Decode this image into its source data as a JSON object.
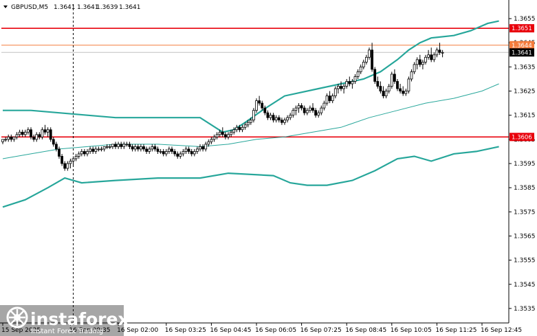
{
  "chart_data": {
    "type": "candlestick",
    "symbol_header": "GBPUSD,M5",
    "ohlc_header": [
      "1.3641",
      "1.3641",
      "1.3639",
      "1.3641"
    ],
    "ylim": [
      1.3529,
      1.3661
    ],
    "y_ticks": [
      "1.3655",
      "1.3645",
      "1.3635",
      "1.3625",
      "1.3615",
      "1.3605",
      "1.3595",
      "1.3585",
      "1.3575",
      "1.3565",
      "1.3555",
      "1.3545",
      "1.3535"
    ],
    "x_tick_labels": [
      "15 Sep 2025",
      "16 Sep 00:35",
      "16 Sep 02:00",
      "16 Sep 03:25",
      "16 Sep 04:45",
      "16 Sep 06:05",
      "16 Sep 07:25",
      "16 Sep 08:45",
      "16 Sep 10:05",
      "16 Sep 11:25",
      "16 Sep 12:45"
    ],
    "x_tick_index": [
      0,
      24,
      41,
      58,
      74,
      90,
      106,
      122,
      138,
      154,
      170
    ],
    "levels": [
      {
        "label": "1.3651",
        "value": 1.3651,
        "color": "#e8000b"
      },
      {
        "label": "1.3644",
        "value": 1.3644,
        "color": "#f47c3c"
      },
      {
        "label": "1.3641",
        "value": 1.3641,
        "color": "#c0c0c0"
      },
      {
        "label": "1.3606",
        "value": 1.3606,
        "color": "#e8000b"
      }
    ],
    "current_price_label": "1.3641",
    "crosshair_index": 25,
    "bands": {
      "upper": [
        [
          0,
          1.3617
        ],
        [
          10,
          1.3617
        ],
        [
          20,
          1.3616
        ],
        [
          30,
          1.3615
        ],
        [
          40,
          1.3614
        ],
        [
          55,
          1.3614
        ],
        [
          70,
          1.3614
        ],
        [
          78,
          1.3608
        ],
        [
          82,
          1.3609
        ],
        [
          86,
          1.3612
        ],
        [
          92,
          1.3617
        ],
        [
          100,
          1.3623
        ],
        [
          112,
          1.3626
        ],
        [
          120,
          1.3628
        ],
        [
          128,
          1.363
        ],
        [
          134,
          1.3633
        ],
        [
          140,
          1.3638
        ],
        [
          144,
          1.3642
        ],
        [
          148,
          1.3645
        ],
        [
          152,
          1.3647
        ],
        [
          160,
          1.3648
        ],
        [
          166,
          1.365
        ],
        [
          172,
          1.3653
        ],
        [
          176,
          1.3654
        ]
      ],
      "middle": [
        [
          0,
          1.3597
        ],
        [
          10,
          1.3599
        ],
        [
          20,
          1.3601
        ],
        [
          30,
          1.3602
        ],
        [
          40,
          1.3603
        ],
        [
          55,
          1.3603
        ],
        [
          70,
          1.3602
        ],
        [
          80,
          1.3603
        ],
        [
          90,
          1.3605
        ],
        [
          100,
          1.3606
        ],
        [
          110,
          1.3608
        ],
        [
          120,
          1.361
        ],
        [
          130,
          1.3614
        ],
        [
          140,
          1.3617
        ],
        [
          150,
          1.362
        ],
        [
          160,
          1.3622
        ],
        [
          170,
          1.3625
        ],
        [
          176,
          1.3628
        ]
      ],
      "lower": [
        [
          0,
          1.3577
        ],
        [
          8,
          1.358
        ],
        [
          16,
          1.3585
        ],
        [
          22,
          1.3589
        ],
        [
          28,
          1.3587
        ],
        [
          40,
          1.3588
        ],
        [
          55,
          1.3589
        ],
        [
          70,
          1.3589
        ],
        [
          80,
          1.3591
        ],
        [
          96,
          1.359
        ],
        [
          102,
          1.3587
        ],
        [
          108,
          1.3586
        ],
        [
          115,
          1.3586
        ],
        [
          124,
          1.3588
        ],
        [
          132,
          1.3592
        ],
        [
          140,
          1.3597
        ],
        [
          146,
          1.3598
        ],
        [
          152,
          1.3596
        ],
        [
          160,
          1.3599
        ],
        [
          168,
          1.36
        ],
        [
          176,
          1.3602
        ]
      ]
    },
    "candles": [
      [
        1.3604,
        1.3605,
        1.3603,
        1.3605
      ],
      [
        1.3605,
        1.3606,
        1.3604,
        1.3605
      ],
      [
        1.3605,
        1.3607,
        1.3604,
        1.3606
      ],
      [
        1.3606,
        1.3607,
        1.3604,
        1.3605
      ],
      [
        1.3605,
        1.3606,
        1.3604,
        1.3606
      ],
      [
        1.3606,
        1.3608,
        1.3605,
        1.3607
      ],
      [
        1.3607,
        1.3609,
        1.3606,
        1.3608
      ],
      [
        1.3608,
        1.3609,
        1.3606,
        1.3607
      ],
      [
        1.3607,
        1.3609,
        1.3606,
        1.3608
      ],
      [
        1.3608,
        1.361,
        1.3607,
        1.3609
      ],
      [
        1.3609,
        1.361,
        1.3605,
        1.3606
      ],
      [
        1.3606,
        1.3607,
        1.3604,
        1.3605
      ],
      [
        1.3605,
        1.3608,
        1.3604,
        1.3607
      ],
      [
        1.3607,
        1.3608,
        1.3605,
        1.3606
      ],
      [
        1.3606,
        1.361,
        1.3605,
        1.3609
      ],
      [
        1.3609,
        1.3611,
        1.3607,
        1.3608
      ],
      [
        1.3608,
        1.361,
        1.3606,
        1.3609
      ],
      [
        1.3609,
        1.361,
        1.3604,
        1.3605
      ],
      [
        1.3605,
        1.3606,
        1.3602,
        1.3603
      ],
      [
        1.3603,
        1.3604,
        1.36,
        1.3601
      ],
      [
        1.3601,
        1.3602,
        1.3597,
        1.3598
      ],
      [
        1.3598,
        1.3599,
        1.3594,
        1.3595
      ],
      [
        1.3595,
        1.3596,
        1.3592,
        1.3593
      ],
      [
        1.3593,
        1.3596,
        1.3592,
        1.3595
      ],
      [
        1.3595,
        1.3597,
        1.3593,
        1.3596
      ],
      [
        1.3596,
        1.3598,
        1.3594,
        1.3597
      ],
      [
        1.3597,
        1.3599,
        1.3596,
        1.3598
      ],
      [
        1.3598,
        1.36,
        1.3597,
        1.3599
      ],
      [
        1.3599,
        1.3601,
        1.3598,
        1.36
      ],
      [
        1.36,
        1.3601,
        1.3598,
        1.3599
      ],
      [
        1.3599,
        1.3601,
        1.3598,
        1.36
      ],
      [
        1.36,
        1.3602,
        1.3599,
        1.3601
      ],
      [
        1.3601,
        1.3602,
        1.3599,
        1.36
      ],
      [
        1.36,
        1.3602,
        1.3599,
        1.3601
      ],
      [
        1.3601,
        1.3602,
        1.36,
        1.3601
      ],
      [
        1.3601,
        1.3602,
        1.36,
        1.3601
      ],
      [
        1.3601,
        1.3602,
        1.36,
        1.3602
      ],
      [
        1.3602,
        1.3603,
        1.3601,
        1.3602
      ],
      [
        1.3602,
        1.3603,
        1.3601,
        1.3602
      ],
      [
        1.3602,
        1.3603,
        1.3601,
        1.3603
      ],
      [
        1.3603,
        1.3604,
        1.3601,
        1.3602
      ],
      [
        1.3602,
        1.3604,
        1.3601,
        1.3603
      ],
      [
        1.3603,
        1.3604,
        1.3601,
        1.3602
      ],
      [
        1.3602,
        1.3604,
        1.3601,
        1.3603
      ],
      [
        1.3603,
        1.3604,
        1.3602,
        1.3603
      ],
      [
        1.3603,
        1.3604,
        1.3601,
        1.3602
      ],
      [
        1.3602,
        1.3603,
        1.36,
        1.3601
      ],
      [
        1.3601,
        1.3603,
        1.36,
        1.3602
      ],
      [
        1.3602,
        1.3603,
        1.36,
        1.3601
      ],
      [
        1.3601,
        1.3603,
        1.36,
        1.3602
      ],
      [
        1.3602,
        1.3603,
        1.36,
        1.3601
      ],
      [
        1.3601,
        1.3602,
        1.3599,
        1.36
      ],
      [
        1.36,
        1.3602,
        1.3599,
        1.3601
      ],
      [
        1.3601,
        1.3603,
        1.36,
        1.3602
      ],
      [
        1.3602,
        1.3603,
        1.36,
        1.3601
      ],
      [
        1.3601,
        1.3602,
        1.3599,
        1.36
      ],
      [
        1.36,
        1.3601,
        1.3599,
        1.36
      ],
      [
        1.36,
        1.3601,
        1.3598,
        1.3599
      ],
      [
        1.3599,
        1.3601,
        1.3598,
        1.36
      ],
      [
        1.36,
        1.3602,
        1.3599,
        1.3601
      ],
      [
        1.3601,
        1.3602,
        1.3599,
        1.36
      ],
      [
        1.36,
        1.3601,
        1.3598,
        1.3599
      ],
      [
        1.3599,
        1.36,
        1.3597,
        1.3598
      ],
      [
        1.3598,
        1.36,
        1.3597,
        1.3599
      ],
      [
        1.3599,
        1.3601,
        1.3598,
        1.36
      ],
      [
        1.36,
        1.3602,
        1.3599,
        1.3601
      ],
      [
        1.3601,
        1.3602,
        1.3599,
        1.36
      ],
      [
        1.36,
        1.3601,
        1.3598,
        1.3599
      ],
      [
        1.3599,
        1.3601,
        1.3598,
        1.36
      ],
      [
        1.36,
        1.3602,
        1.3599,
        1.3601
      ],
      [
        1.3601,
        1.3603,
        1.36,
        1.3602
      ],
      [
        1.3602,
        1.3603,
        1.36,
        1.3601
      ],
      [
        1.3601,
        1.3604,
        1.36,
        1.3603
      ],
      [
        1.3603,
        1.3605,
        1.3602,
        1.3604
      ],
      [
        1.3604,
        1.3606,
        1.3603,
        1.3605
      ],
      [
        1.3605,
        1.3607,
        1.3604,
        1.3606
      ],
      [
        1.3606,
        1.3608,
        1.3605,
        1.3607
      ],
      [
        1.3607,
        1.3609,
        1.3606,
        1.3608
      ],
      [
        1.3608,
        1.361,
        1.3606,
        1.3607
      ],
      [
        1.3607,
        1.3608,
        1.3605,
        1.3606
      ],
      [
        1.3606,
        1.3608,
        1.3605,
        1.3607
      ],
      [
        1.3607,
        1.3609,
        1.3606,
        1.3608
      ],
      [
        1.3608,
        1.361,
        1.3607,
        1.3609
      ],
      [
        1.3609,
        1.3611,
        1.3608,
        1.361
      ],
      [
        1.361,
        1.3611,
        1.3608,
        1.3609
      ],
      [
        1.3609,
        1.3611,
        1.3608,
        1.361
      ],
      [
        1.361,
        1.3612,
        1.3609,
        1.3611
      ],
      [
        1.3611,
        1.3613,
        1.361,
        1.3612
      ],
      [
        1.3612,
        1.3614,
        1.3611,
        1.3613
      ],
      [
        1.3613,
        1.3618,
        1.3612,
        1.3617
      ],
      [
        1.3617,
        1.3622,
        1.3616,
        1.3621
      ],
      [
        1.3621,
        1.3623,
        1.3619,
        1.362
      ],
      [
        1.362,
        1.3621,
        1.3617,
        1.3618
      ],
      [
        1.3618,
        1.3619,
        1.3615,
        1.3616
      ],
      [
        1.3616,
        1.3617,
        1.3613,
        1.3614
      ],
      [
        1.3614,
        1.3616,
        1.3613,
        1.3615
      ],
      [
        1.3615,
        1.3616,
        1.3612,
        1.3613
      ],
      [
        1.3613,
        1.3615,
        1.3612,
        1.3614
      ],
      [
        1.3614,
        1.3615,
        1.3612,
        1.3613
      ],
      [
        1.3613,
        1.3614,
        1.3611,
        1.3612
      ],
      [
        1.3612,
        1.3614,
        1.3611,
        1.3613
      ],
      [
        1.3613,
        1.3615,
        1.3612,
        1.3614
      ],
      [
        1.3614,
        1.3616,
        1.3613,
        1.3615
      ],
      [
        1.3615,
        1.3618,
        1.3614,
        1.3617
      ],
      [
        1.3617,
        1.3619,
        1.3615,
        1.3618
      ],
      [
        1.3618,
        1.362,
        1.3616,
        1.3619
      ],
      [
        1.3619,
        1.362,
        1.3617,
        1.3618
      ],
      [
        1.3618,
        1.3619,
        1.3615,
        1.3616
      ],
      [
        1.3616,
        1.3618,
        1.3615,
        1.3617
      ],
      [
        1.3617,
        1.3619,
        1.3616,
        1.3618
      ],
      [
        1.3618,
        1.362,
        1.3616,
        1.3617
      ],
      [
        1.3617,
        1.3618,
        1.3614,
        1.3615
      ],
      [
        1.3615,
        1.3617,
        1.3614,
        1.3616
      ],
      [
        1.3616,
        1.3619,
        1.3615,
        1.3618
      ],
      [
        1.3618,
        1.3621,
        1.3617,
        1.362
      ],
      [
        1.362,
        1.3624,
        1.3619,
        1.3623
      ],
      [
        1.3623,
        1.3625,
        1.362,
        1.3621
      ],
      [
        1.3621,
        1.3624,
        1.362,
        1.3623
      ],
      [
        1.3623,
        1.3627,
        1.3622,
        1.3626
      ],
      [
        1.3626,
        1.3628,
        1.3624,
        1.3627
      ],
      [
        1.3627,
        1.3629,
        1.3625,
        1.3626
      ],
      [
        1.3626,
        1.3628,
        1.3624,
        1.3627
      ],
      [
        1.3627,
        1.363,
        1.3626,
        1.3629
      ],
      [
        1.3629,
        1.3631,
        1.3627,
        1.3628
      ],
      [
        1.3628,
        1.363,
        1.3626,
        1.3629
      ],
      [
        1.3629,
        1.3632,
        1.3628,
        1.3631
      ],
      [
        1.3631,
        1.3634,
        1.363,
        1.3633
      ],
      [
        1.3633,
        1.3636,
        1.3632,
        1.3635
      ],
      [
        1.3635,
        1.3638,
        1.3634,
        1.3637
      ],
      [
        1.3637,
        1.364,
        1.3636,
        1.3639
      ],
      [
        1.3639,
        1.3643,
        1.3638,
        1.3642
      ],
      [
        1.3642,
        1.3645,
        1.3633,
        1.3634
      ],
      [
        1.3634,
        1.3635,
        1.3628,
        1.3629
      ],
      [
        1.3629,
        1.3631,
        1.3626,
        1.3627
      ],
      [
        1.3627,
        1.3629,
        1.3624,
        1.3625
      ],
      [
        1.3625,
        1.3627,
        1.3622,
        1.3623
      ],
      [
        1.3623,
        1.3626,
        1.3622,
        1.3625
      ],
      [
        1.3625,
        1.3628,
        1.3624,
        1.3627
      ],
      [
        1.3627,
        1.3633,
        1.3626,
        1.3632
      ],
      [
        1.3632,
        1.3634,
        1.3628,
        1.3629
      ],
      [
        1.3629,
        1.363,
        1.3625,
        1.3626
      ],
      [
        1.3626,
        1.3628,
        1.3624,
        1.3625
      ],
      [
        1.3625,
        1.3627,
        1.3623,
        1.3624
      ],
      [
        1.3624,
        1.3626,
        1.3623,
        1.3625
      ],
      [
        1.3625,
        1.3631,
        1.3624,
        1.363
      ],
      [
        1.363,
        1.3634,
        1.3629,
        1.3633
      ],
      [
        1.3633,
        1.3637,
        1.3632,
        1.3636
      ],
      [
        1.3636,
        1.3639,
        1.3634,
        1.3638
      ],
      [
        1.3638,
        1.364,
        1.3635,
        1.3636
      ],
      [
        1.3636,
        1.3638,
        1.3634,
        1.3637
      ],
      [
        1.3637,
        1.364,
        1.3636,
        1.3639
      ],
      [
        1.3639,
        1.3642,
        1.3638,
        1.364
      ],
      [
        1.364,
        1.3643,
        1.3637,
        1.3638
      ],
      [
        1.3638,
        1.3641,
        1.3637,
        1.364
      ],
      [
        1.364,
        1.3643,
        1.3639,
        1.3642
      ],
      [
        1.3642,
        1.3645,
        1.364,
        1.3641
      ],
      [
        1.3641,
        1.3642,
        1.3639,
        1.3641
      ]
    ]
  },
  "logo": {
    "brand": "instaforex",
    "tagline": "Instant Forex Trading"
  }
}
